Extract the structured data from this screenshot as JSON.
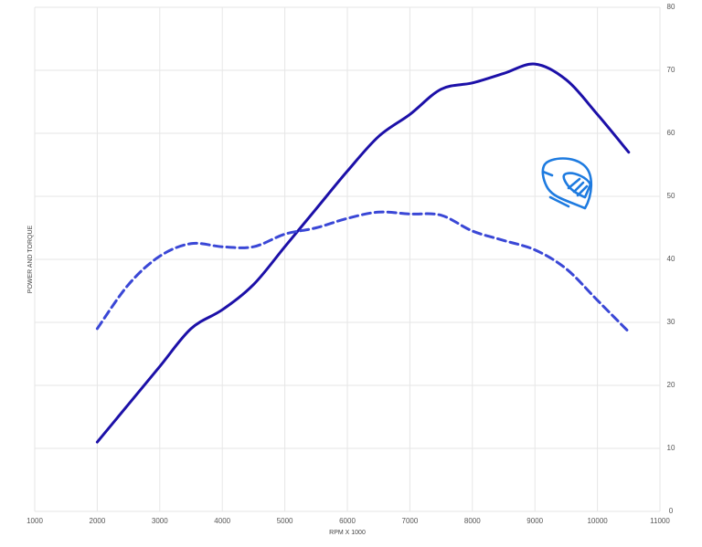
{
  "chart_data": {
    "type": "line",
    "x_label": "RPM X 1000",
    "y_label": "POWER AND TORQUE",
    "x": [
      2000,
      2500,
      3000,
      3500,
      4000,
      4500,
      5000,
      5500,
      6000,
      6500,
      7000,
      7500,
      8000,
      8500,
      9000,
      9500,
      10000,
      10500
    ],
    "series": [
      {
        "color": "#1c10a8",
        "line_style": "solid",
        "values": [
          11,
          17,
          23,
          29,
          32,
          36,
          42,
          48,
          54,
          59.5,
          63,
          67,
          68,
          69.5,
          71,
          68.5,
          63,
          57
        ]
      },
      {
        "color": "#3a47d6",
        "line_style": "dashed",
        "values": [
          29,
          36,
          40.5,
          42.5,
          42,
          42,
          44,
          45,
          46.5,
          47.5,
          47.2,
          47,
          44.5,
          43,
          41.5,
          38.5,
          33.5,
          28.5
        ]
      }
    ],
    "xlim": [
      1000,
      11000
    ],
    "xticks": [
      1000,
      2000,
      3000,
      4000,
      5000,
      6000,
      7000,
      8000,
      9000,
      10000,
      11000
    ],
    "ylim": [
      0,
      80
    ],
    "yticks": [
      0,
      10,
      20,
      30,
      40,
      50,
      60,
      70,
      80
    ],
    "y_axis_side": "right",
    "grid": true
  }
}
